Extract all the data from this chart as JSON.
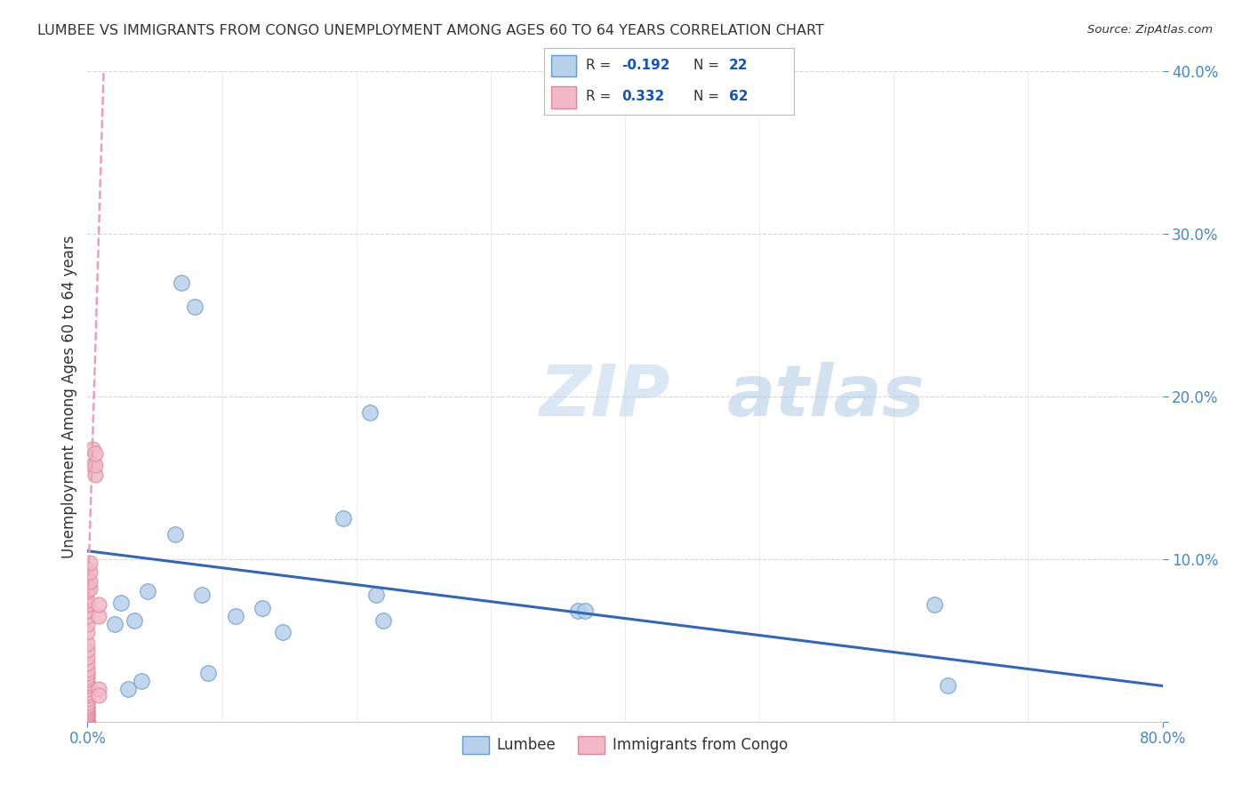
{
  "title": "LUMBEE VS IMMIGRANTS FROM CONGO UNEMPLOYMENT AMONG AGES 60 TO 64 YEARS CORRELATION CHART",
  "source": "Source: ZipAtlas.com",
  "ylabel": "Unemployment Among Ages 60 to 64 years",
  "xlim": [
    0,
    0.8
  ],
  "ylim": [
    0,
    0.4
  ],
  "xtick_positions": [
    0.0,
    0.8
  ],
  "xtick_labels": [
    "0.0%",
    "80.0%"
  ],
  "ytick_positions": [
    0.0,
    0.1,
    0.2,
    0.3,
    0.4
  ],
  "ytick_labels": [
    "",
    "10.0%",
    "20.0%",
    "30.0%",
    "40.0%"
  ],
  "watermark_zip": "ZIP",
  "watermark_atlas": "atlas",
  "lumbee_color": "#b8d0ea",
  "congo_color": "#f2b8c8",
  "lumbee_edge": "#6699cc",
  "congo_edge": "#dd8899",
  "lumbee_R": -0.192,
  "lumbee_N": 22,
  "congo_R": 0.332,
  "congo_N": 62,
  "lumbee_trend_color": "#3366bb",
  "congo_trend_color": "#e8a0b4",
  "lumbee_points_x": [
    0.02,
    0.025,
    0.03,
    0.035,
    0.04,
    0.045,
    0.065,
    0.07,
    0.08,
    0.085,
    0.09,
    0.11,
    0.13,
    0.145,
    0.19,
    0.21,
    0.215,
    0.22,
    0.365,
    0.37,
    0.63,
    0.64
  ],
  "lumbee_points_y": [
    0.06,
    0.073,
    0.02,
    0.062,
    0.025,
    0.08,
    0.115,
    0.27,
    0.255,
    0.078,
    0.03,
    0.065,
    0.07,
    0.055,
    0.125,
    0.19,
    0.078,
    0.062,
    0.068,
    0.068,
    0.072,
    0.022
  ],
  "congo_points_x": [
    0.0,
    0.0,
    0.0,
    0.0,
    0.0,
    0.0,
    0.0,
    0.0,
    0.0,
    0.0,
    0.0,
    0.0,
    0.0,
    0.0,
    0.0,
    0.0,
    0.0,
    0.0,
    0.0,
    0.0,
    0.0,
    0.0,
    0.0,
    0.0,
    0.0,
    0.0,
    0.0,
    0.0,
    0.0,
    0.0,
    0.0,
    0.0,
    0.0,
    0.0,
    0.0,
    0.0,
    0.0,
    0.0,
    0.0,
    0.0,
    0.0,
    0.0,
    0.0,
    0.0,
    0.0,
    0.0,
    0.0,
    0.0,
    0.0,
    0.002,
    0.002,
    0.002,
    0.002,
    0.004,
    0.004,
    0.006,
    0.006,
    0.006,
    0.008,
    0.008,
    0.008,
    0.008
  ],
  "congo_points_y": [
    0.0,
    0.0,
    0.0,
    0.0,
    0.0,
    0.0,
    0.0,
    0.0,
    0.0,
    0.0,
    0.0,
    0.0,
    0.0,
    0.0,
    0.0,
    0.002,
    0.003,
    0.004,
    0.005,
    0.006,
    0.007,
    0.008,
    0.009,
    0.01,
    0.012,
    0.014,
    0.016,
    0.018,
    0.02,
    0.022,
    0.024,
    0.026,
    0.028,
    0.03,
    0.032,
    0.036,
    0.04,
    0.044,
    0.048,
    0.055,
    0.06,
    0.065,
    0.068,
    0.072,
    0.075,
    0.08,
    0.082,
    0.086,
    0.09,
    0.082,
    0.086,
    0.092,
    0.098,
    0.158,
    0.168,
    0.152,
    0.158,
    0.165,
    0.02,
    0.016,
    0.065,
    0.072
  ],
  "lumbee_trend_x": [
    0.0,
    0.8
  ],
  "lumbee_trend_y": [
    0.105,
    0.022
  ],
  "congo_trend_x": [
    0.0,
    0.012
  ],
  "congo_trend_y": [
    0.068,
    0.4
  ],
  "background_color": "#ffffff",
  "grid_color": "#cccccc",
  "title_color": "#333333",
  "axis_color": "#4488cc",
  "legend_text_color": "#333333",
  "legend_R_color": "#1155bb",
  "box_edge_color": "#bbbbbb"
}
